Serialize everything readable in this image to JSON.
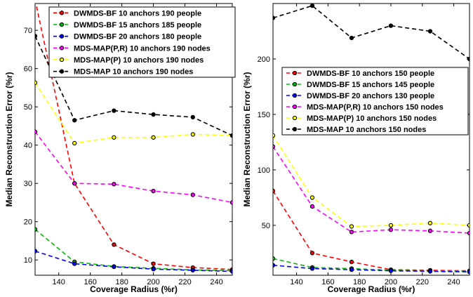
{
  "chart_data": [
    {
      "type": "line",
      "xlabel": "Coverage Radius (%r)",
      "ylabel": "Median Reconstruction Error (%r)",
      "xlim": [
        125,
        250
      ],
      "ylim": [
        6,
        77
      ],
      "xticks": [
        140,
        160,
        180,
        200,
        220,
        240
      ],
      "yticks": [
        10,
        20,
        30,
        40,
        50,
        60,
        70
      ],
      "legend_position": "top-right",
      "x": [
        125,
        150,
        175,
        200,
        225,
        250
      ],
      "series": [
        {
          "name": "DWMDS-BF 10 anchors 190 people",
          "color": "#ff0000",
          "values": [
            78,
            30,
            14,
            9,
            8,
            7.5
          ]
        },
        {
          "name": "DWMDS-BF 15 anchors 185 people",
          "color": "#00bb00",
          "values": [
            18,
            9.5,
            8.3,
            7.8,
            7.4,
            7.2
          ]
        },
        {
          "name": "DWMDS-BF 20 anchors 180 people",
          "color": "#0000ff",
          "values": [
            12.3,
            9,
            8.2,
            7.6,
            7.3,
            7
          ]
        },
        {
          "name": "MDS-MAP(P,R) 10 anchors 190 nodes",
          "color": "#ff00ff",
          "values": [
            43.5,
            30,
            29.8,
            28,
            27,
            25
          ]
        },
        {
          "name": "MDS-MAP(P) 10 anchors 190 nodes",
          "color": "#ffff00",
          "values": [
            56.3,
            40.5,
            42,
            42,
            42.8,
            42.5
          ]
        },
        {
          "name": "MDS-MAP 10 anchors 190 nodes",
          "color": "#000000",
          "values": [
            68.5,
            46.5,
            49,
            48,
            47.3,
            42.5
          ]
        }
      ]
    },
    {
      "type": "line",
      "xlabel": "Coverage Radius (%r)",
      "ylabel": "Median Reconstruction Error (%r)",
      "xlim": [
        125,
        250
      ],
      "ylim": [
        5,
        250
      ],
      "xticks": [
        140,
        160,
        180,
        200,
        220,
        240
      ],
      "yticks": [
        50,
        100,
        150,
        200
      ],
      "legend_position": "center-right",
      "x": [
        125,
        150,
        175,
        200,
        225,
        250
      ],
      "series": [
        {
          "name": "DWMDS-BF 10 anchors 150 people",
          "color": "#ff0000",
          "values": [
            81,
            25,
            17,
            10,
            9.5,
            9
          ]
        },
        {
          "name": "DWMDS-BF 15 anchors 145 people",
          "color": "#00bb00",
          "values": [
            20,
            12,
            11,
            9.5,
            9,
            8.5
          ]
        },
        {
          "name": "DWMDS-BF 20 anchors 130 people",
          "color": "#0000ff",
          "values": [
            14,
            11,
            10,
            9,
            8.5,
            8
          ]
        },
        {
          "name": "MDS-MAP(P,R) 10 anchors 150 nodes",
          "color": "#ff00ff",
          "values": [
            121,
            67,
            44,
            46,
            45,
            43
          ]
        },
        {
          "name": "MDS-MAP(P) 10 anchors 150 nodes",
          "color": "#ffff00",
          "values": [
            131,
            75,
            49,
            50,
            52,
            50
          ]
        },
        {
          "name": "MDS-MAP 10 anchors 150 nodes",
          "color": "#000000",
          "values": [
            237,
            248,
            219,
            230,
            225,
            200
          ]
        }
      ]
    }
  ]
}
